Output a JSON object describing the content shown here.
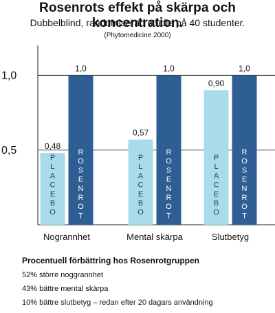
{
  "title": "Rosenrots effekt på skärpa och koncentration.",
  "subtitle": "Dubbelblind, randomiserad studie på 40 studenter.",
  "source": "(Phytomedicine 2000)",
  "chart_data": {
    "type": "bar",
    "categories": [
      "Nogrannhet",
      "Mental skärpa",
      "Slutbetyg"
    ],
    "series": [
      {
        "name": "PLACEBO",
        "values": [
          0.48,
          0.57,
          0.9
        ],
        "labels": [
          "0,48",
          "0,57",
          "0,90"
        ],
        "color": "#a8dcea"
      },
      {
        "name": "ROSENROT",
        "values": [
          1.0,
          1.0,
          1.0
        ],
        "labels": [
          "1,0",
          "1,0",
          "1,0"
        ],
        "color": "#2e5e93"
      }
    ],
    "y_ticks": [
      {
        "value": 0.5,
        "label": "0,5"
      },
      {
        "value": 1.0,
        "label": "1,0"
      }
    ],
    "ylim": [
      0,
      1.2
    ],
    "grid": "horizontal",
    "xlabel": "",
    "ylabel": ""
  },
  "notes": {
    "heading": "Procentuell förbättring hos Rosenrotgruppen",
    "items": [
      "52% större noggrannhet",
      "43% bättre mental skärpa",
      "10% bättre slutbetyg – redan efter 20 dagars användning"
    ]
  }
}
